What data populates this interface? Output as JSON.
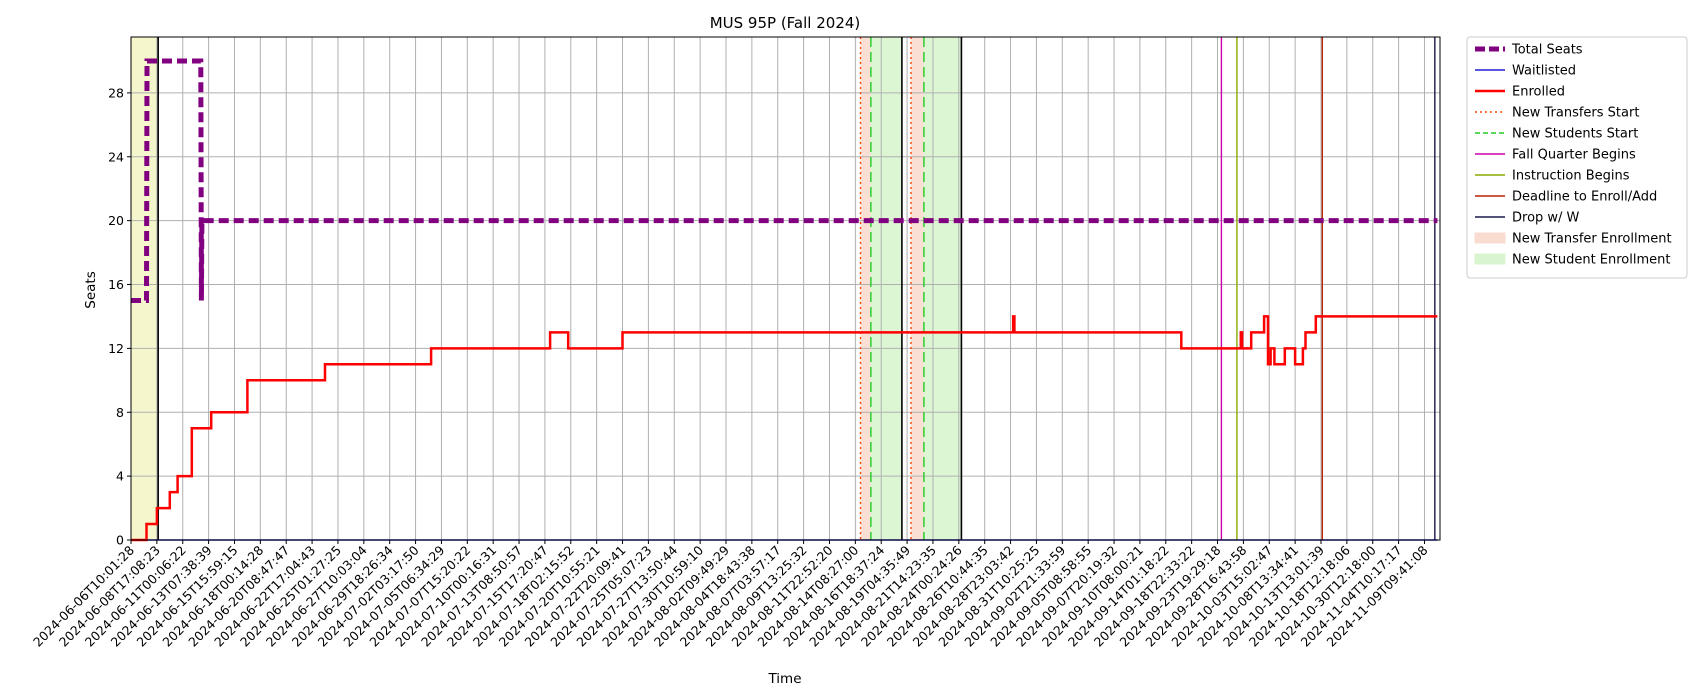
{
  "chart_data": {
    "type": "line",
    "title": "MUS 95P (Fall 2024)",
    "xlabel": "Time",
    "ylabel": "Seats",
    "xlim": [
      "2024-06-06T10:01:28",
      "2024-11-10T05:00:00"
    ],
    "ylim": [
      0,
      31.5
    ],
    "grid": true,
    "legend_position": "outside-right",
    "y_ticks": [
      0,
      4,
      8,
      12,
      16,
      20,
      24,
      28
    ],
    "x_ticks": [
      "2024-06-06T10:01:28",
      "2024-06-08T17:08:23",
      "2024-06-11T00:06:22",
      "2024-06-13T07:38:39",
      "2024-06-15T15:59:15",
      "2024-06-18T00:14:28",
      "2024-06-20T08:47:47",
      "2024-06-22T17:04:43",
      "2024-06-25T01:27:25",
      "2024-06-27T10:03:04",
      "2024-06-29T18:26:34",
      "2024-07-02T03:17:50",
      "2024-07-05T06:34:29",
      "2024-07-07T15:20:22",
      "2024-07-10T00:16:31",
      "2024-07-13T08:50:57",
      "2024-07-15T17:20:47",
      "2024-07-18T02:15:52",
      "2024-07-20T10:55:21",
      "2024-07-22T20:09:41",
      "2024-07-25T05:07:23",
      "2024-07-27T13:50:44",
      "2024-07-30T10:59:10",
      "2024-08-02T09:49:29",
      "2024-08-04T18:43:38",
      "2024-08-07T03:57:17",
      "2024-08-09T13:25:32",
      "2024-08-11T22:52:20",
      "2024-08-14T08:27:00",
      "2024-08-16T18:37:24",
      "2024-08-19T04:35:49",
      "2024-08-21T14:23:35",
      "2024-08-24T00:24:26",
      "2024-08-26T10:44:35",
      "2024-08-28T23:03:42",
      "2024-08-31T10:25:25",
      "2024-09-02T21:33:59",
      "2024-09-05T08:58:55",
      "2024-09-07T20:19:32",
      "2024-09-10T08:00:21",
      "2024-09-14T01:18:22",
      "2024-09-18T22:33:22",
      "2024-09-23T19:29:18",
      "2024-09-28T16:43:58",
      "2024-10-03T15:02:47",
      "2024-10-08T13:34:41",
      "2024-10-13T13:01:39",
      "2024-10-18T12:18:06",
      "2024-10-30T12:18:00",
      "2024-11-04T10:17:17",
      "2024-11-09T09:41:08"
    ],
    "series": [
      {
        "name": "Total Seats",
        "color": "#800080",
        "style": "dashed-thick",
        "points": [
          [
            0,
            15
          ],
          [
            0.6,
            15
          ],
          [
            0.62,
            30
          ],
          [
            2.7,
            30
          ],
          [
            2.72,
            15
          ],
          [
            2.74,
            20
          ],
          [
            50.5,
            20
          ]
        ]
      },
      {
        "name": "Waitlisted",
        "color": "#1f1fd6",
        "style": "solid",
        "points": [
          [
            0,
            0
          ],
          [
            50.5,
            0
          ]
        ]
      },
      {
        "name": "Enrolled",
        "color": "#ff0000",
        "style": "solid-thick",
        "points": [
          [
            0,
            0
          ],
          [
            0.6,
            0
          ],
          [
            0.6,
            1
          ],
          [
            1.0,
            1
          ],
          [
            1.0,
            2
          ],
          [
            1.5,
            2
          ],
          [
            1.5,
            3
          ],
          [
            1.8,
            3
          ],
          [
            1.8,
            4
          ],
          [
            2.35,
            4
          ],
          [
            2.35,
            7
          ],
          [
            3.1,
            7
          ],
          [
            3.1,
            8
          ],
          [
            4.5,
            8
          ],
          [
            4.5,
            10
          ],
          [
            7.5,
            10
          ],
          [
            7.5,
            11
          ],
          [
            11.6,
            11
          ],
          [
            11.6,
            12
          ],
          [
            16.2,
            12
          ],
          [
            16.2,
            13
          ],
          [
            16.9,
            13
          ],
          [
            16.9,
            12
          ],
          [
            19.0,
            12
          ],
          [
            19.0,
            13
          ],
          [
            34.1,
            13
          ],
          [
            34.1,
            14
          ],
          [
            34.15,
            14
          ],
          [
            34.15,
            13
          ],
          [
            40.6,
            13
          ],
          [
            40.6,
            12
          ],
          [
            42.9,
            12
          ],
          [
            42.9,
            13
          ],
          [
            42.95,
            13
          ],
          [
            42.95,
            12
          ],
          [
            43.3,
            12
          ],
          [
            43.3,
            13
          ],
          [
            43.8,
            13
          ],
          [
            43.8,
            14
          ],
          [
            43.95,
            14
          ],
          [
            43.95,
            11
          ],
          [
            44.05,
            11
          ],
          [
            44.05,
            12
          ],
          [
            44.2,
            12
          ],
          [
            44.2,
            11
          ],
          [
            44.6,
            11
          ],
          [
            44.6,
            12
          ],
          [
            45.0,
            12
          ],
          [
            45.0,
            11
          ],
          [
            45.3,
            11
          ],
          [
            45.3,
            12
          ],
          [
            45.4,
            12
          ],
          [
            45.4,
            13
          ],
          [
            45.8,
            13
          ],
          [
            45.8,
            14
          ],
          [
            50.5,
            14
          ]
        ]
      }
    ],
    "events": [
      {
        "name": "New Transfers Start",
        "x": 28.2,
        "color": "#ff4500",
        "style": "dotted"
      },
      {
        "name": "New Transfers Start",
        "x": 30.15,
        "color": "#ff4500",
        "style": "dotted"
      },
      {
        "name": "New Students Start",
        "x": 28.6,
        "color": "#22cc22",
        "style": "dashed"
      },
      {
        "name": "New Students Start",
        "x": 30.65,
        "color": "#22cc22",
        "style": "dashed"
      },
      {
        "name": "Fall Quarter Begins",
        "x": 42.15,
        "color": "#cc00aa",
        "style": "solid"
      },
      {
        "name": "Instruction Begins",
        "x": 42.75,
        "color": "#88aa00",
        "style": "solid"
      },
      {
        "name": "Deadline to Enroll/Add",
        "x": 46.05,
        "color": "#bb2200",
        "style": "solid"
      },
      {
        "name": "Drop w/ W",
        "x": 50.4,
        "color": "#1a1a4a",
        "style": "solid"
      },
      {
        "name": "",
        "x": 1.05,
        "color": "#000000",
        "style": "solid"
      },
      {
        "name": "",
        "x": 29.8,
        "color": "#000000",
        "style": "solid"
      },
      {
        "name": "",
        "x": 32.1,
        "color": "#000000",
        "style": "solid"
      }
    ],
    "regions": [
      {
        "name": "",
        "x0": 0,
        "x1": 1.05,
        "color": "#f5f5c8"
      },
      {
        "name": "New Transfer Enrollment",
        "x0": 28.2,
        "x1": 28.6,
        "color": "#f9dccf"
      },
      {
        "name": "New Student Enrollment",
        "x0": 28.6,
        "x1": 29.8,
        "color": "#d8f5cf"
      },
      {
        "name": "New Transfer Enrollment",
        "x0": 30.15,
        "x1": 30.65,
        "color": "#f9dccf"
      },
      {
        "name": "New Student Enrollment",
        "x0": 30.65,
        "x1": 32.1,
        "color": "#d8f5cf"
      }
    ],
    "legend": [
      {
        "label": "Total Seats",
        "color": "#800080",
        "kind": "dashed-thick"
      },
      {
        "label": "Waitlisted",
        "color": "#1f1fd6",
        "kind": "line"
      },
      {
        "label": "Enrolled",
        "color": "#ff0000",
        "kind": "line-thick"
      },
      {
        "label": "New Transfers Start",
        "color": "#ff4500",
        "kind": "dotted"
      },
      {
        "label": "New Students Start",
        "color": "#22cc22",
        "kind": "dashed"
      },
      {
        "label": "Fall Quarter Begins",
        "color": "#cc00aa",
        "kind": "line"
      },
      {
        "label": "Instruction Begins",
        "color": "#88aa00",
        "kind": "line"
      },
      {
        "label": "Deadline to Enroll/Add",
        "color": "#bb2200",
        "kind": "line"
      },
      {
        "label": "Drop w/ W",
        "color": "#1a1a4a",
        "kind": "line"
      },
      {
        "label": "New Transfer Enrollment",
        "color": "#f9dccf",
        "kind": "patch"
      },
      {
        "label": "New Student Enrollment",
        "color": "#d8f5cf",
        "kind": "patch"
      }
    ]
  }
}
